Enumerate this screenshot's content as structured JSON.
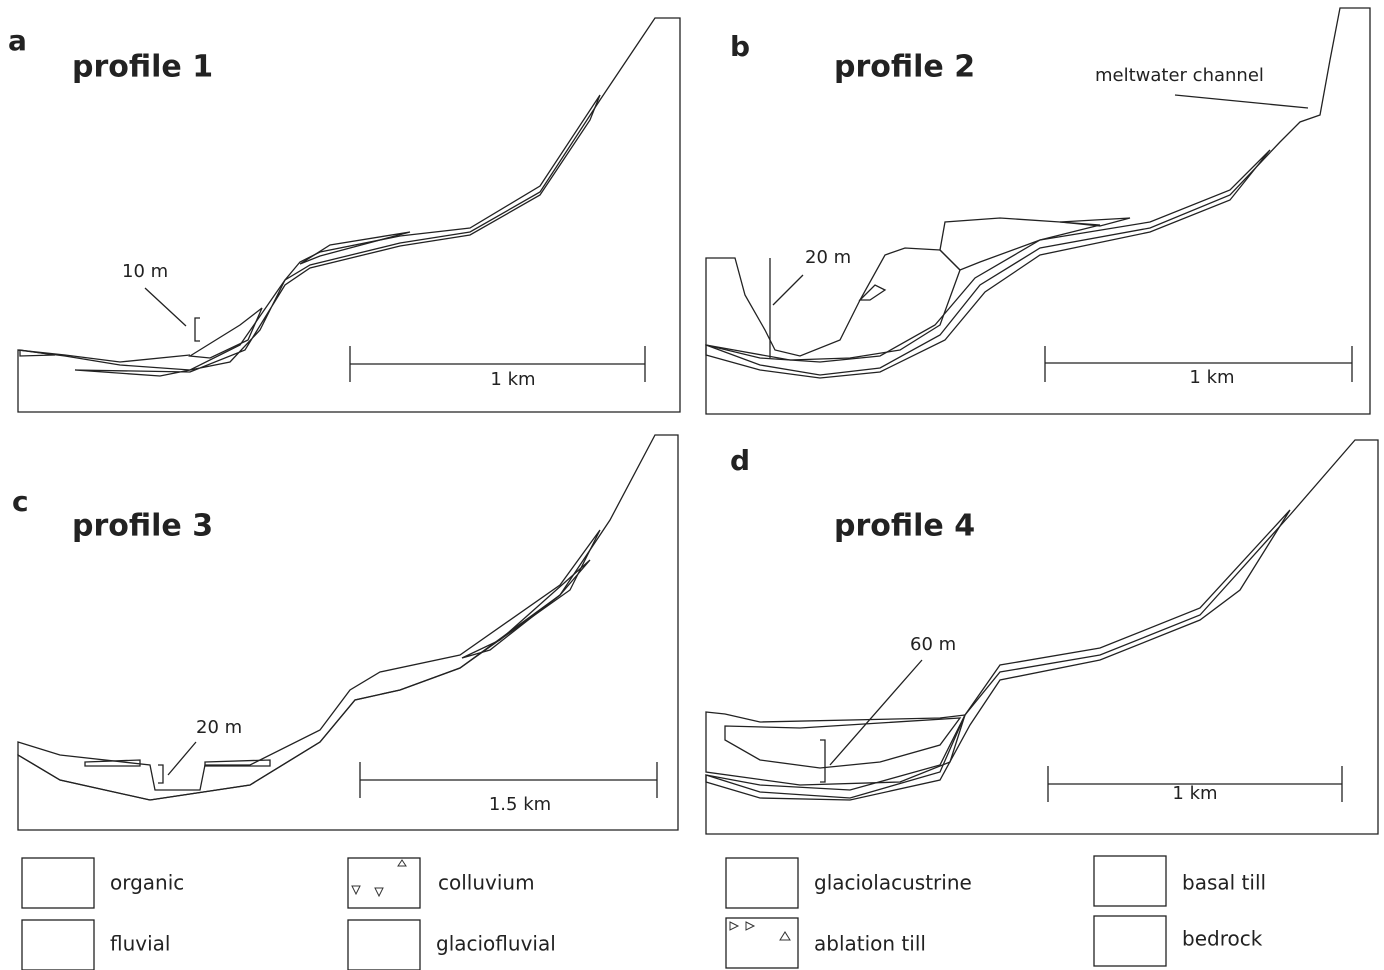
{
  "panels": [
    {
      "letter": "a",
      "title": "profile 1",
      "scale": "1 km",
      "annotations": [
        "10 m"
      ]
    },
    {
      "letter": "b",
      "title": "profile 2",
      "scale": "1 km",
      "annotations": [
        "20 m",
        "meltwater channel"
      ]
    },
    {
      "letter": "c",
      "title": "profile 3",
      "scale": "1.5 km",
      "annotations": [
        "20 m"
      ]
    },
    {
      "letter": "d",
      "title": "profile 4",
      "scale": "1 km",
      "annotations": [
        "60 m"
      ]
    }
  ],
  "legend": [
    "organic",
    "fluvial",
    "colluvium",
    "glaciofluvial",
    "glaciolacustrine",
    "ablation till",
    "basal till",
    "bedrock"
  ]
}
